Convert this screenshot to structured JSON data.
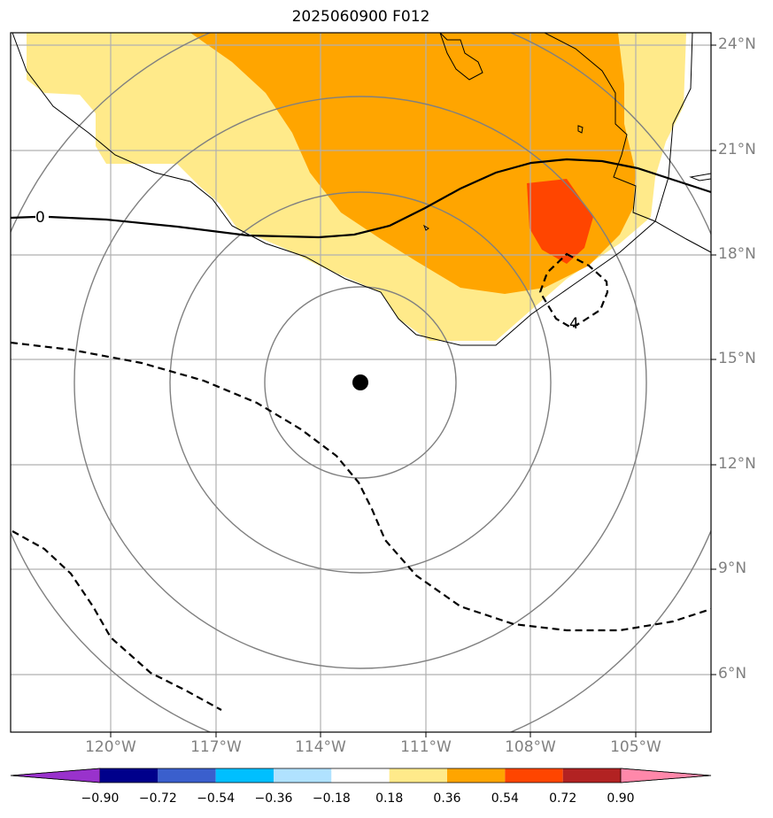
{
  "title": "2025060900 F012",
  "map": {
    "lat_labels": [
      "24°N",
      "21°N",
      "18°N",
      "15°N",
      "12°N",
      "9°N",
      "6°N"
    ],
    "lon_labels": [
      "120°W",
      "117°W",
      "114°W",
      "111°W",
      "108°W",
      "105°W"
    ],
    "contour_labels": [
      "0",
      "4"
    ],
    "storm_center": {
      "lon": "112.8°W",
      "lat": "14.4°N"
    },
    "colors": {
      "yellow": "#ffea8a",
      "orange": "#ffa500",
      "red": "#ff4500",
      "grid": "#b0b0b0",
      "range_rings": "#808080"
    }
  },
  "colorbar": {
    "ticks": [
      "−0.90",
      "−0.72",
      "−0.54",
      "−0.36",
      "−0.18",
      "0.18",
      "0.36",
      "0.54",
      "0.72",
      "0.90"
    ],
    "colors": [
      "#9932cc",
      "#00008b",
      "#3a5fcd",
      "#00bfff",
      "#b0e2ff",
      "#ffffff",
      "#ffea8a",
      "#ffa500",
      "#ff4500",
      "#b22222",
      "#ff88aa"
    ]
  }
}
